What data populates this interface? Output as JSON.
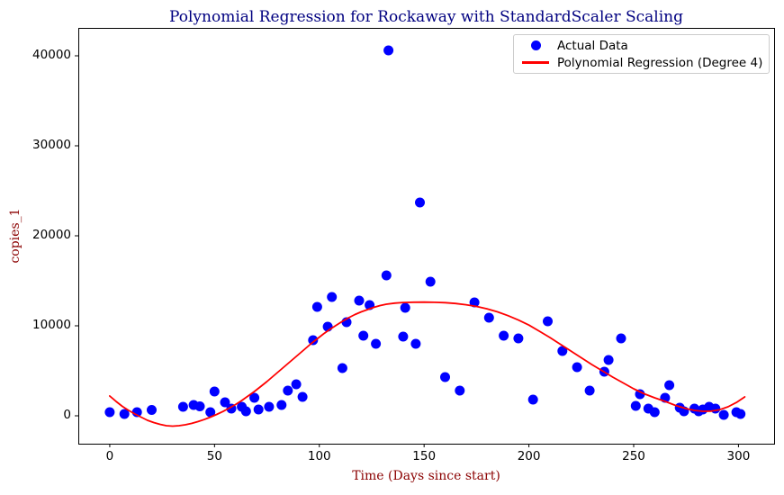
{
  "chart_data": {
    "type": "scatter",
    "title": "Polynomial Regression for Rockaway with StandardScaler Scaling",
    "xlabel": "Time (Days since start)",
    "ylabel": "copies_1",
    "xlim": [
      -15,
      317
    ],
    "ylim": [
      -3100,
      43100
    ],
    "xticks": [
      "0",
      "50",
      "100",
      "150",
      "200",
      "250",
      "300"
    ],
    "yticks": [
      "0",
      "10000",
      "20000",
      "30000",
      "40000"
    ],
    "grid": false,
    "legend_position": "upper right",
    "colors": {
      "title": "#000080",
      "axis_labels": "#8b0000",
      "scatter": "#0000ff",
      "line": "#ff0000",
      "ticks": "#000000"
    },
    "legend": [
      {
        "label": "Actual Data",
        "marker": "dot",
        "color": "#0000ff"
      },
      {
        "label": "Polynomial Regression (Degree 4)",
        "marker": "line",
        "color": "#ff0000"
      }
    ],
    "series": [
      {
        "name": "Actual Data",
        "type": "scatter",
        "color": "#0000ff",
        "points": [
          [
            0,
            400
          ],
          [
            7,
            200
          ],
          [
            13,
            400
          ],
          [
            20,
            650
          ],
          [
            35,
            1000
          ],
          [
            40,
            1200
          ],
          [
            43,
            1050
          ],
          [
            48,
            400
          ],
          [
            50,
            2700
          ],
          [
            55,
            1500
          ],
          [
            58,
            800
          ],
          [
            63,
            1000
          ],
          [
            65,
            500
          ],
          [
            69,
            2000
          ],
          [
            71,
            700
          ],
          [
            76,
            1000
          ],
          [
            82,
            1200
          ],
          [
            85,
            2800
          ],
          [
            89,
            3500
          ],
          [
            92,
            2100
          ],
          [
            97,
            8400
          ],
          [
            99,
            12100
          ],
          [
            104,
            9900
          ],
          [
            106,
            13200
          ],
          [
            111,
            5300
          ],
          [
            113,
            10400
          ],
          [
            119,
            12800
          ],
          [
            121,
            8900
          ],
          [
            124,
            12300
          ],
          [
            127,
            8000
          ],
          [
            132,
            15600
          ],
          [
            133,
            40600
          ],
          [
            140,
            8800
          ],
          [
            141,
            12000
          ],
          [
            146,
            8000
          ],
          [
            148,
            23700
          ],
          [
            153,
            14900
          ],
          [
            160,
            4300
          ],
          [
            167,
            2800
          ],
          [
            174,
            12600
          ],
          [
            181,
            10900
          ],
          [
            188,
            8900
          ],
          [
            195,
            8600
          ],
          [
            202,
            1800
          ],
          [
            209,
            10500
          ],
          [
            216,
            7200
          ],
          [
            223,
            5400
          ],
          [
            229,
            2800
          ],
          [
            236,
            4900
          ],
          [
            238,
            6200
          ],
          [
            244,
            8600
          ],
          [
            251,
            1100
          ],
          [
            253,
            2400
          ],
          [
            257,
            800
          ],
          [
            260,
            400
          ],
          [
            265,
            2000
          ],
          [
            267,
            3400
          ],
          [
            272,
            900
          ],
          [
            274,
            500
          ],
          [
            279,
            800
          ],
          [
            281,
            500
          ],
          [
            283,
            700
          ],
          [
            286,
            1000
          ],
          [
            289,
            800
          ],
          [
            293,
            100
          ],
          [
            299,
            400
          ],
          [
            301,
            200
          ]
        ]
      },
      {
        "name": "Polynomial Regression (Degree 4)",
        "type": "line",
        "color": "#ff0000",
        "points": [
          [
            0,
            2200
          ],
          [
            3,
            1600
          ],
          [
            6,
            1050
          ],
          [
            9,
            600
          ],
          [
            12,
            200
          ],
          [
            15,
            -150
          ],
          [
            18,
            -500
          ],
          [
            21,
            -750
          ],
          [
            24,
            -950
          ],
          [
            27,
            -1100
          ],
          [
            30,
            -1150
          ],
          [
            33,
            -1100
          ],
          [
            36,
            -1000
          ],
          [
            39,
            -850
          ],
          [
            42,
            -650
          ],
          [
            45,
            -420
          ],
          [
            48,
            -150
          ],
          [
            51,
            150
          ],
          [
            54,
            480
          ],
          [
            57,
            850
          ],
          [
            60,
            1250
          ],
          [
            63,
            1700
          ],
          [
            66,
            2200
          ],
          [
            69,
            2700
          ],
          [
            72,
            3250
          ],
          [
            75,
            3800
          ],
          [
            78,
            4400
          ],
          [
            81,
            5000
          ],
          [
            84,
            5600
          ],
          [
            87,
            6200
          ],
          [
            90,
            6800
          ],
          [
            93,
            7400
          ],
          [
            96,
            8000
          ],
          [
            99,
            8550
          ],
          [
            102,
            9100
          ],
          [
            105,
            9600
          ],
          [
            108,
            10050
          ],
          [
            111,
            10500
          ],
          [
            114,
            10900
          ],
          [
            117,
            11250
          ],
          [
            120,
            11550
          ],
          [
            123,
            11800
          ],
          [
            126,
            12050
          ],
          [
            129,
            12250
          ],
          [
            132,
            12400
          ],
          [
            136,
            12520
          ],
          [
            140,
            12590
          ],
          [
            145,
            12625
          ],
          [
            150,
            12630
          ],
          [
            155,
            12615
          ],
          [
            160,
            12570
          ],
          [
            165,
            12480
          ],
          [
            170,
            12340
          ],
          [
            175,
            12150
          ],
          [
            180,
            11890
          ],
          [
            185,
            11550
          ],
          [
            190,
            11130
          ],
          [
            195,
            10640
          ],
          [
            200,
            10080
          ],
          [
            205,
            9400
          ],
          [
            210,
            8700
          ],
          [
            215,
            7950
          ],
          [
            220,
            7200
          ],
          [
            225,
            6450
          ],
          [
            230,
            5700
          ],
          [
            235,
            5000
          ],
          [
            240,
            4300
          ],
          [
            245,
            3650
          ],
          [
            250,
            3000
          ],
          [
            255,
            2450
          ],
          [
            260,
            2000
          ],
          [
            265,
            1600
          ],
          [
            270,
            1150
          ],
          [
            275,
            800
          ],
          [
            279,
            600
          ],
          [
            283,
            500
          ],
          [
            287,
            520
          ],
          [
            291,
            680
          ],
          [
            295,
            1000
          ],
          [
            299,
            1480
          ],
          [
            303,
            2100
          ]
        ]
      }
    ]
  }
}
